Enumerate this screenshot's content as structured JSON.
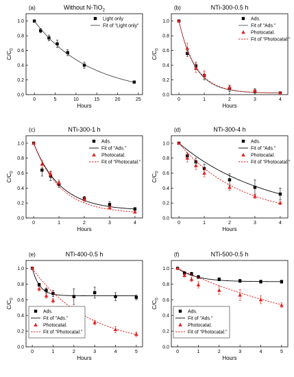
{
  "figure": {
    "y_axis_label": "C/C",
    "y_axis_label_sub": "0",
    "x_axis_label": "Hours"
  },
  "chart_data": [
    {
      "type": "scatter",
      "label": "(a)",
      "title": "Without N-TiO",
      "title_sub": "2",
      "xlim": [
        -2,
        26
      ],
      "ylim": [
        0.0,
        1.1
      ],
      "xticks": [
        0,
        5,
        10,
        15,
        20,
        25
      ],
      "yticks": [
        0.0,
        0.2,
        0.4,
        0.6,
        0.8,
        1.0
      ],
      "legend_position": "top-right",
      "series": [
        {
          "name": "Light only",
          "kind": "markers",
          "marker": "square",
          "color": "#000000",
          "x": [
            0,
            1.5,
            3.5,
            5.5,
            8,
            12,
            24
          ],
          "y": [
            1.0,
            0.87,
            0.77,
            0.69,
            0.57,
            0.4,
            0.17
          ],
          "err": [
            0,
            0.03,
            0.04,
            0.05,
            0.04,
            0.04,
            0.01
          ]
        },
        {
          "name": "Fit of \"Light only\"",
          "kind": "fit",
          "style": "solid",
          "color": "#444444",
          "fit": {
            "a": 0.0,
            "b": 1.0,
            "k": 0.0745
          },
          "xrange": [
            0,
            24
          ]
        }
      ]
    },
    {
      "type": "scatter",
      "label": "(b)",
      "title": "NTi-300-0.5 h",
      "xlim": [
        -0.3,
        4.3
      ],
      "ylim": [
        0.0,
        1.1
      ],
      "xticks": [
        0,
        1,
        2,
        3,
        4
      ],
      "yticks": [
        0.0,
        0.2,
        0.4,
        0.6,
        0.8,
        1.0
      ],
      "legend_position": "top-right",
      "series": [
        {
          "name": "Ads.",
          "kind": "markers",
          "marker": "square",
          "color": "#000000",
          "x": [
            0,
            0.33,
            0.67,
            1,
            2,
            3,
            4
          ],
          "y": [
            1.0,
            0.56,
            0.39,
            0.26,
            0.08,
            0.04,
            0.02
          ],
          "err": [
            0,
            0.04,
            0.05,
            0.06,
            0.04,
            0.04,
            0.02
          ]
        },
        {
          "name": "Fit of \"Ads.\"",
          "kind": "fit",
          "style": "solid",
          "color": "#555555",
          "fit": {
            "a": 0.02,
            "b": 0.98,
            "k": 1.55
          },
          "xrange": [
            0,
            4
          ]
        },
        {
          "name": "Photocatal.",
          "kind": "markers",
          "marker": "triangle",
          "color": "#e02020",
          "x": [
            0,
            0.33,
            0.67,
            1,
            2,
            3,
            4
          ],
          "y": [
            1.0,
            0.63,
            0.36,
            0.27,
            0.1,
            0.05,
            0.02
          ],
          "err": [
            0,
            0.07,
            0.06,
            0.05,
            0.03,
            0.02,
            0.01
          ]
        },
        {
          "name": "Fit of \"Photocatal.\"",
          "kind": "fit",
          "style": "dashed",
          "color": "#e02020",
          "fit": {
            "a": 0.02,
            "b": 0.98,
            "k": 1.5
          },
          "xrange": [
            0,
            4
          ]
        }
      ]
    },
    {
      "type": "scatter",
      "label": "(c)",
      "title": "NTi-300-1 h",
      "xlim": [
        -0.3,
        4.3
      ],
      "ylim": [
        0.0,
        1.1
      ],
      "xticks": [
        0,
        1,
        2,
        3,
        4
      ],
      "yticks": [
        0.0,
        0.2,
        0.4,
        0.6,
        0.8,
        1.0
      ],
      "legend_position": "top-right",
      "series": [
        {
          "name": "Ads.",
          "kind": "markers",
          "marker": "square",
          "color": "#000000",
          "x": [
            0,
            0.33,
            0.67,
            1,
            2,
            3,
            4
          ],
          "y": [
            1.0,
            0.64,
            0.56,
            0.45,
            0.26,
            0.18,
            0.12
          ],
          "err": [
            0,
            0.08,
            0.06,
            0.04,
            0.03,
            0.04,
            0.02
          ]
        },
        {
          "name": "Fit of \"Ads.\"",
          "kind": "fit",
          "style": "solid",
          "color": "#000000",
          "fit": {
            "a": 0.1,
            "b": 0.9,
            "k": 0.95
          },
          "xrange": [
            0,
            4
          ]
        },
        {
          "name": "Photocatal.",
          "kind": "markers",
          "marker": "triangle",
          "color": "#e02020",
          "x": [
            0,
            0.33,
            0.67,
            1,
            2,
            3,
            4
          ],
          "y": [
            1.0,
            0.72,
            0.59,
            0.47,
            0.25,
            0.14,
            0.08
          ],
          "err": [
            0,
            0.05,
            0.04,
            0.04,
            0.03,
            0.02,
            0.01
          ]
        },
        {
          "name": "Fit of \"Photocatal.\"",
          "kind": "fit",
          "style": "dashed",
          "color": "#e02020",
          "fit": {
            "a": 0.06,
            "b": 0.94,
            "k": 0.95
          },
          "xrange": [
            0,
            4
          ]
        }
      ]
    },
    {
      "type": "scatter",
      "label": "(d)",
      "title": "NTi-300-4 h",
      "xlim": [
        -0.3,
        4.3
      ],
      "ylim": [
        0.0,
        1.1
      ],
      "xticks": [
        0,
        1,
        2,
        3,
        4
      ],
      "yticks": [
        0.0,
        0.2,
        0.4,
        0.6,
        0.8,
        1.0
      ],
      "legend_position": "top-right",
      "series": [
        {
          "name": "Ads.",
          "kind": "markers",
          "marker": "square",
          "color": "#000000",
          "x": [
            0,
            0.33,
            0.67,
            1,
            2,
            3,
            4
          ],
          "y": [
            1.0,
            0.83,
            0.75,
            0.66,
            0.51,
            0.41,
            0.32
          ],
          "err": [
            0,
            0.04,
            0.05,
            0.06,
            0.08,
            0.1,
            0.08
          ]
        },
        {
          "name": "Fit of \"Ads.\"",
          "kind": "fit",
          "style": "solid",
          "color": "#000000",
          "fit": {
            "a": 0.0,
            "b": 1.0,
            "k": 0.285
          },
          "xrange": [
            0,
            4
          ]
        },
        {
          "name": "Photocatal.",
          "kind": "markers",
          "marker": "triangle",
          "color": "#e02020",
          "x": [
            0,
            0.33,
            0.67,
            1,
            2,
            3,
            4
          ],
          "y": [
            1.0,
            0.8,
            0.7,
            0.6,
            0.41,
            0.29,
            0.2
          ],
          "err": [
            0,
            0.05,
            0.05,
            0.05,
            0.04,
            0.03,
            0.02
          ]
        },
        {
          "name": "Fit of \"Photocatal.\"",
          "kind": "fit",
          "style": "dashed",
          "color": "#e02020",
          "fit": {
            "a": 0.0,
            "b": 1.0,
            "k": 0.41
          },
          "xrange": [
            0,
            4
          ]
        }
      ]
    },
    {
      "type": "scatter",
      "label": "(e)",
      "title": "NTi-400-0.5 h",
      "xlim": [
        -0.3,
        5.3
      ],
      "ylim": [
        0.0,
        1.1
      ],
      "xticks": [
        0,
        1,
        2,
        3,
        4,
        5
      ],
      "yticks": [
        0.0,
        0.2,
        0.4,
        0.6,
        0.8,
        1.0
      ],
      "legend_position": "bottom-left",
      "series": [
        {
          "name": "Ads.",
          "kind": "markers",
          "marker": "square",
          "color": "#000000",
          "x": [
            0,
            0.33,
            0.67,
            1,
            2,
            3,
            4,
            5
          ],
          "y": [
            1.0,
            0.79,
            0.72,
            0.68,
            0.64,
            0.69,
            0.64,
            0.63
          ],
          "err": [
            0,
            0.02,
            0.03,
            0.04,
            0.1,
            0.07,
            0.05,
            0.03
          ]
        },
        {
          "name": "Fit of \"Ads.\"",
          "kind": "fit",
          "style": "solid",
          "color": "#000000",
          "fit": {
            "a": 0.65,
            "b": 0.35,
            "k": 2.8
          },
          "xrange": [
            0,
            5
          ]
        },
        {
          "name": "Photocatal.",
          "kind": "markers",
          "marker": "triangle",
          "color": "#e02020",
          "x": [
            0,
            0.33,
            0.67,
            1,
            2,
            3,
            4,
            5
          ],
          "y": [
            1.0,
            0.74,
            0.65,
            0.59,
            0.45,
            0.31,
            0.22,
            0.16
          ],
          "err": [
            0,
            0.03,
            0.03,
            0.03,
            0.02,
            0.03,
            0.04,
            0.03
          ]
        },
        {
          "name": "Fit of \"Photocatal.\"",
          "kind": "fit",
          "style": "dashed",
          "color": "#e02020",
          "fit": {
            "a": 0.0,
            "b": 1.0,
            "k": 0.37
          },
          "xrange": [
            0,
            5
          ]
        }
      ]
    },
    {
      "type": "scatter",
      "label": "(f)",
      "title": "NTi-500-0.5 h",
      "xlim": [
        -0.3,
        5.3
      ],
      "ylim": [
        0.0,
        1.1
      ],
      "xticks": [
        0,
        1,
        2,
        3,
        4,
        5
      ],
      "yticks": [
        0.0,
        0.2,
        0.4,
        0.6,
        0.8,
        1.0
      ],
      "legend_position": "bottom-left",
      "series": [
        {
          "name": "Ads.",
          "kind": "markers",
          "marker": "square",
          "color": "#000000",
          "x": [
            0,
            0.33,
            0.67,
            1,
            2,
            3,
            4,
            5
          ],
          "y": [
            1.0,
            0.94,
            0.93,
            0.89,
            0.86,
            0.84,
            0.83,
            0.83
          ],
          "err": [
            0,
            0.02,
            0.02,
            0.02,
            0.02,
            0.02,
            0.02,
            0.02
          ]
        },
        {
          "name": "Fit of \"Ads.\"",
          "kind": "fit",
          "style": "solid",
          "color": "#000000",
          "fit": {
            "a": 0.83,
            "b": 0.17,
            "k": 1.1
          },
          "xrange": [
            0,
            5
          ]
        },
        {
          "name": "Photocatal.",
          "kind": "markers",
          "marker": "triangle",
          "color": "#e02020",
          "x": [
            0,
            0.33,
            0.67,
            1,
            2,
            3,
            4,
            5
          ],
          "y": [
            1.0,
            0.91,
            0.86,
            0.79,
            0.72,
            0.66,
            0.6,
            0.53
          ],
          "err": [
            0,
            0.02,
            0.03,
            0.04,
            0.05,
            0.07,
            0.05,
            0.03
          ]
        },
        {
          "name": "Fit of \"Photocatal.\"",
          "kind": "fit",
          "style": "dashed",
          "color": "#e02020",
          "fit": {
            "a": 0.0,
            "b": 1.0,
            "k": 0.125
          },
          "xrange": [
            0,
            5
          ]
        }
      ]
    }
  ]
}
